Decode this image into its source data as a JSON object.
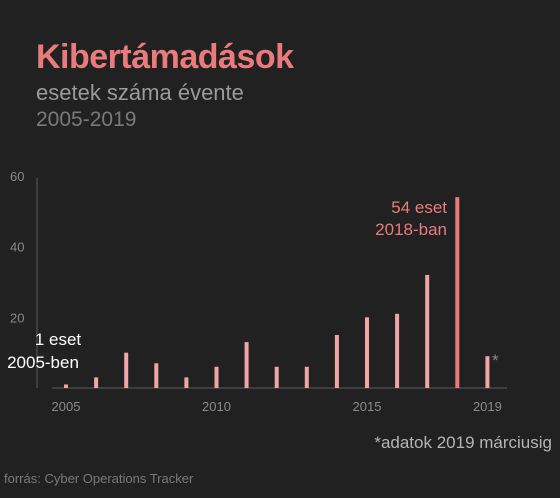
{
  "header": {
    "title": "Kibertámadások",
    "subtitle": "esetek száma évente",
    "years": "2005-2019"
  },
  "footer": {
    "note": "*adatok 2019 márciusig",
    "source": "forrás: Cyber Operations Tracker"
  },
  "colors": {
    "background": "#212121",
    "bar": "#f0a6a8",
    "highlight_bar": "#ea7b7c",
    "title": "#ea7b7c",
    "axis": "#5a5a5a"
  },
  "chart_data": {
    "type": "bar",
    "title": "",
    "xlabel": "",
    "ylabel": "",
    "categories": [
      "2005",
      "2006",
      "2007",
      "2008",
      "2009",
      "2010",
      "2011",
      "2012",
      "2013",
      "2014",
      "2015",
      "2016",
      "2017",
      "2018",
      "2019"
    ],
    "values": [
      1,
      3,
      10,
      7,
      3,
      6,
      13,
      6,
      6,
      15,
      20,
      21,
      32,
      54,
      9
    ],
    "highlight_category": "2018",
    "partial_category": "2019",
    "partial_marker": "*",
    "ylim": [
      0,
      60
    ],
    "yticks": [
      "20",
      "40",
      "60"
    ],
    "xticks": [
      "2005",
      "2010",
      "2015",
      "2019"
    ],
    "grid": false,
    "legend": "none",
    "annotations": {
      "first_line1": "1 eset",
      "first_line2": "2005-ben",
      "peak_line1": "54 eset",
      "peak_line2": "2018-ban"
    }
  }
}
